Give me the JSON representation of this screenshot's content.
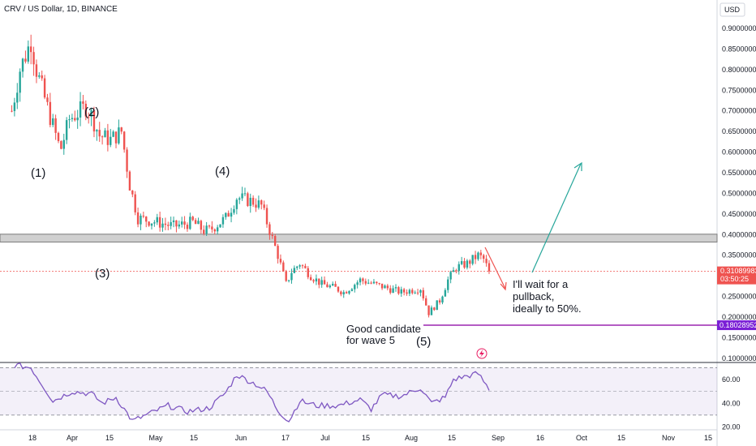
{
  "symbol_header": "CRV / US Dollar, 1D, BINANCE",
  "currency_label": "USD",
  "colors": {
    "up": "#26a69a",
    "down": "#ef5350",
    "rsi": "#7e57c2",
    "purple": "#9c27b0",
    "zone": "#c9c9c9"
  },
  "price_axis": {
    "ticks": [
      "0.90000000",
      "0.85000000",
      "0.80000000",
      "0.75000000",
      "0.70000000",
      "0.65000000",
      "0.60000000",
      "0.55000000",
      "0.50000000",
      "0.45000000",
      "0.40000000",
      "0.35000000",
      "0.30000000",
      "0.25000000",
      "0.20000000",
      "0.15000000",
      "0.10000000"
    ],
    "current_price": "0.31089983",
    "countdown": "03:50:25",
    "support_price": "0.18028952"
  },
  "rsi_axis": {
    "ticks": [
      "60.00",
      "40.00",
      "20.00"
    ]
  },
  "time_axis": {
    "ticks": [
      "18",
      "Apr",
      "15",
      "May",
      "15",
      "Jun",
      "17",
      "Jul",
      "15",
      "Aug",
      "15",
      "Sep",
      "16",
      "Oct",
      "15",
      "Nov",
      "15"
    ]
  },
  "annotations": {
    "wave1": "(1)",
    "wave2": "(2)",
    "wave3": "(3)",
    "wave4": "(4)",
    "wave5": "(5)",
    "candidate_line1": "Good candidate",
    "candidate_line2": "for wave 5",
    "pullback_line1": "I'll wait for a",
    "pullback_line2": "pullback,",
    "pullback_line3": "ideally to 50%."
  },
  "chart_data": {
    "type": "candlestick",
    "title": "CRV / US Dollar, 1D, BINANCE",
    "ylabel": "USD",
    "ylim": [
      0.1,
      0.92
    ],
    "resistance_zone": [
      0.382,
      0.401
    ],
    "support_level": 0.18028952,
    "waypoints": [
      {
        "x": "Mar 5",
        "y": 0.7
      },
      {
        "x": "Mar 8",
        "y": 0.8
      },
      {
        "x": "Mar 12",
        "y": 0.87
      },
      {
        "x": "Mar 14",
        "y": 0.8
      },
      {
        "x": "Mar 17",
        "y": 0.73
      },
      {
        "x": "Mar 22",
        "y": 0.62
      },
      {
        "x": "Mar 23",
        "y": 0.61
      },
      {
        "x": "Mar 26",
        "y": 0.68
      },
      {
        "x": "Apr 1",
        "y": 0.71
      },
      {
        "x": "Apr 3",
        "y": 0.69
      },
      {
        "x": "Apr 6",
        "y": 0.64
      },
      {
        "x": "Apr 10",
        "y": 0.63
      },
      {
        "x": "Apr 14",
        "y": 0.65
      },
      {
        "x": "Apr 17",
        "y": 0.52
      },
      {
        "x": "Apr 20",
        "y": 0.44
      },
      {
        "x": "Apr 27",
        "y": 0.43
      },
      {
        "x": "May 3",
        "y": 0.42
      },
      {
        "x": "May 10",
        "y": 0.43
      },
      {
        "x": "May 14",
        "y": 0.41
      },
      {
        "x": "May 16",
        "y": 0.41
      },
      {
        "x": "May 22",
        "y": 0.44
      },
      {
        "x": "May 26",
        "y": 0.49
      },
      {
        "x": "Jun 1",
        "y": 0.48
      },
      {
        "x": "Jun 4",
        "y": 0.47
      },
      {
        "x": "Jun 7",
        "y": 0.41
      },
      {
        "x": "Jun 10",
        "y": 0.35
      },
      {
        "x": "Jun 13",
        "y": 0.28
      },
      {
        "x": "Jun 15",
        "y": 0.31
      },
      {
        "x": "Jun 18",
        "y": 0.33
      },
      {
        "x": "Jun 22",
        "y": 0.3
      },
      {
        "x": "Jun 26",
        "y": 0.28
      },
      {
        "x": "Jul 1",
        "y": 0.27
      },
      {
        "x": "Jul 4",
        "y": 0.26
      },
      {
        "x": "Jul 10",
        "y": 0.29
      },
      {
        "x": "Jul 15",
        "y": 0.28
      },
      {
        "x": "Jul 20",
        "y": 0.27
      },
      {
        "x": "Jul 25",
        "y": 0.26
      },
      {
        "x": "Aug 1",
        "y": 0.27
      },
      {
        "x": "Aug 4",
        "y": 0.21
      },
      {
        "x": "Aug 8",
        "y": 0.24
      },
      {
        "x": "Aug 11",
        "y": 0.29
      },
      {
        "x": "Aug 14",
        "y": 0.32
      },
      {
        "x": "Aug 18",
        "y": 0.33
      },
      {
        "x": "Aug 22",
        "y": 0.35
      },
      {
        "x": "Aug 24",
        "y": 0.34
      },
      {
        "x": "Aug 26",
        "y": 0.31
      }
    ],
    "rsi_waypoints": [
      {
        "x": "Mar 6",
        "y": 72
      },
      {
        "x": "Mar 12",
        "y": 70
      },
      {
        "x": "Mar 20",
        "y": 42
      },
      {
        "x": "Mar 27",
        "y": 50
      },
      {
        "x": "Apr 3",
        "y": 48
      },
      {
        "x": "Apr 7",
        "y": 40
      },
      {
        "x": "Apr 12",
        "y": 45
      },
      {
        "x": "Apr 18",
        "y": 25
      },
      {
        "x": "Apr 25",
        "y": 32
      },
      {
        "x": "May 1",
        "y": 38
      },
      {
        "x": "May 8",
        "y": 33
      },
      {
        "x": "May 16",
        "y": 36
      },
      {
        "x": "May 22",
        "y": 49
      },
      {
        "x": "May 26",
        "y": 64
      },
      {
        "x": "Jun 2",
        "y": 56
      },
      {
        "x": "Jun 6",
        "y": 50
      },
      {
        "x": "Jun 10",
        "y": 34
      },
      {
        "x": "Jun 14",
        "y": 25
      },
      {
        "x": "Jun 18",
        "y": 42
      },
      {
        "x": "Jun 24",
        "y": 38
      },
      {
        "x": "Jul 2",
        "y": 38
      },
      {
        "x": "Jul 10",
        "y": 43
      },
      {
        "x": "Jul 14",
        "y": 35
      },
      {
        "x": "Jul 18",
        "y": 47
      },
      {
        "x": "Jul 25",
        "y": 46
      },
      {
        "x": "Aug 1",
        "y": 53
      },
      {
        "x": "Aug 5",
        "y": 40
      },
      {
        "x": "Aug 10",
        "y": 45
      },
      {
        "x": "Aug 13",
        "y": 60
      },
      {
        "x": "Aug 18",
        "y": 63
      },
      {
        "x": "Aug 22",
        "y": 65
      },
      {
        "x": "Aug 26",
        "y": 52
      }
    ],
    "rsi_ylim": [
      19,
      73
    ],
    "rsi_bands": [
      30,
      50,
      70
    ]
  }
}
